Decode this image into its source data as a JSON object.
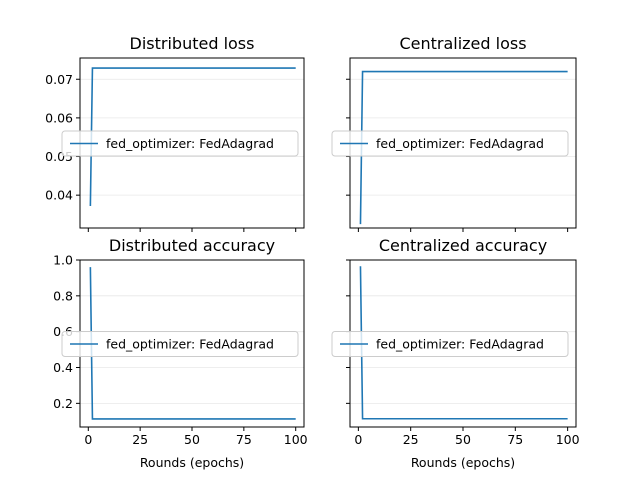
{
  "chart_data": [
    {
      "type": "line",
      "title": "Distributed loss",
      "xlabel": "",
      "ylabel": "",
      "xlim": [
        -4,
        104
      ],
      "ylim": [
        0.0315,
        0.0755
      ],
      "xticks": [
        0,
        25,
        50,
        75,
        100
      ],
      "xtick_labels": [
        "",
        "",
        "",
        "",
        ""
      ],
      "yticks": [
        0.04,
        0.05,
        0.06,
        0.07
      ],
      "ytick_labels": [
        "0.04",
        "0.05",
        "0.06",
        "0.07"
      ],
      "grid": true,
      "legend": "center-left",
      "color": "#1f77b4",
      "series": [
        {
          "name": "fed_optimizer: FedAdagrad",
          "x": [
            1,
            2,
            100
          ],
          "y": [
            0.0372,
            0.0729,
            0.0729
          ]
        }
      ]
    },
    {
      "type": "line",
      "title": "Centralized loss",
      "xlabel": "",
      "ylabel": "",
      "xlim": [
        -4,
        104
      ],
      "ylim": [
        0.0315,
        0.0755
      ],
      "xticks": [
        0,
        25,
        50,
        75,
        100
      ],
      "xtick_labels": [
        "",
        "",
        "",
        "",
        ""
      ],
      "yticks": [
        0.04,
        0.05,
        0.06,
        0.07
      ],
      "ytick_labels": [
        "",
        "",
        "",
        ""
      ],
      "grid": true,
      "legend": "center-left",
      "color": "#1f77b4",
      "series": [
        {
          "name": "fed_optimizer: FedAdagrad",
          "x": [
            1,
            2,
            100
          ],
          "y": [
            0.0325,
            0.072,
            0.072
          ]
        }
      ]
    },
    {
      "type": "line",
      "title": "Distributed accuracy",
      "xlabel": "Rounds (epochs)",
      "ylabel": "",
      "xlim": [
        -4,
        104
      ],
      "ylim": [
        0.068,
        1.0
      ],
      "xticks": [
        0,
        25,
        50,
        75,
        100
      ],
      "xtick_labels": [
        "0",
        "25",
        "50",
        "75",
        "100"
      ],
      "yticks": [
        0.2,
        0.4,
        0.6,
        0.8,
        1.0
      ],
      "ytick_labels": [
        "0.2",
        "0.4",
        "0.6",
        "0.8",
        "1.0"
      ],
      "grid": true,
      "legend": "center-left",
      "color": "#1f77b4",
      "series": [
        {
          "name": "fed_optimizer: FedAdagrad",
          "x": [
            1,
            2,
            100
          ],
          "y": [
            0.96,
            0.113,
            0.113
          ]
        }
      ]
    },
    {
      "type": "line",
      "title": "Centralized accuracy",
      "xlabel": "Rounds (epochs)",
      "ylabel": "",
      "xlim": [
        -4,
        104
      ],
      "ylim": [
        0.068,
        1.0
      ],
      "xticks": [
        0,
        25,
        50,
        75,
        100
      ],
      "xtick_labels": [
        "0",
        "25",
        "50",
        "75",
        "100"
      ],
      "yticks": [
        0.2,
        0.4,
        0.6,
        0.8,
        1.0
      ],
      "ytick_labels": [
        "",
        "",
        "",
        "",
        ""
      ],
      "grid": true,
      "legend": "center-left",
      "color": "#1f77b4",
      "series": [
        {
          "name": "fed_optimizer: FedAdagrad",
          "x": [
            1,
            2,
            100
          ],
          "y": [
            0.965,
            0.114,
            0.114
          ]
        }
      ]
    }
  ]
}
